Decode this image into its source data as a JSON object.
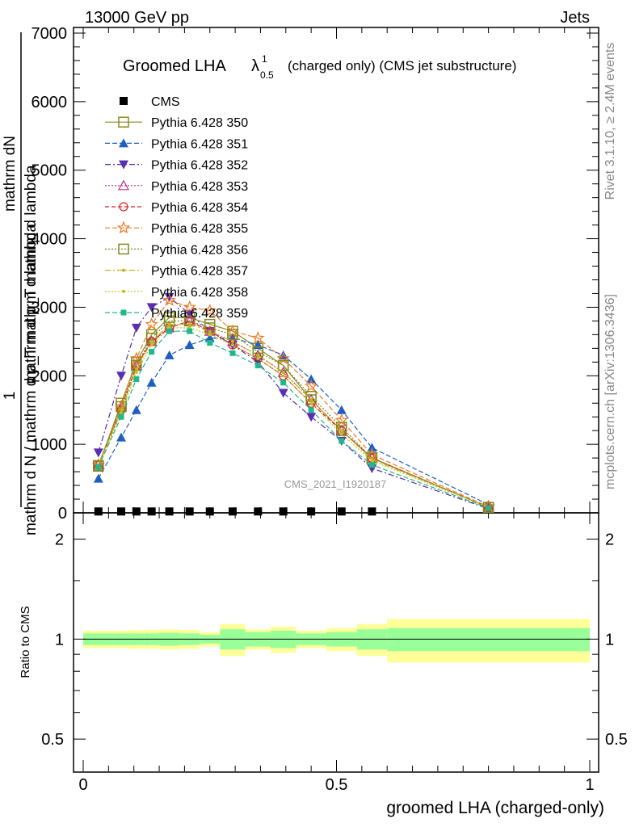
{
  "header": {
    "energy_label": "13000 GeV pp",
    "process_label": "Jets",
    "rivet_label": "Rivet 3.1.10, ≥ 2.4M events",
    "mcplots_label": "mcplots.cern.ch [arXiv:1306.3436]",
    "analysis_label": "CMS_2021_I1920187"
  },
  "chart_data": {
    "type": "line",
    "title": "Groomed LHA",
    "title_symbol": "λ",
    "title_sup": "1",
    "title_sub": "0.5",
    "title_rest": "(charged only) (CMS jet substructure)",
    "ylabel_main": "mathrm d N / mathrm d p_T mathrm d lambda",
    "ylabel_numer": "1",
    "ylabel_denom": "mathrm d N / mathrm d p_T",
    "ylabel_left": "mathrm dN",
    "ylabel_tail": "mathrm d p_T mathrm d lambda",
    "ylabel_ratio": "Ratio to CMS",
    "xlabel": "groomed LHA (charged-only)",
    "xlim": [
      0,
      1
    ],
    "ylim": [
      0,
      7000
    ],
    "ratio_ylim": [
      0.4,
      2.4
    ],
    "x_ticks": [
      "0",
      "0.5",
      "1"
    ],
    "y_ticks": [
      "0",
      "1000",
      "2000",
      "3000",
      "4000",
      "5000",
      "6000",
      "7000"
    ],
    "ratio_ticks": [
      "0.5",
      "1",
      "2"
    ],
    "x": [
      0.03,
      0.075,
      0.105,
      0.135,
      0.17,
      0.21,
      0.25,
      0.295,
      0.345,
      0.395,
      0.45,
      0.51,
      0.57,
      0.8
    ],
    "cms": {
      "name": "CMS",
      "x": [
        0.03,
        0.075,
        0.105,
        0.135,
        0.17,
        0.21,
        0.25,
        0.295,
        0.345,
        0.395,
        0.45,
        0.51,
        0.57
      ],
      "values": [
        20,
        20,
        20,
        20,
        20,
        20,
        20,
        20,
        20,
        20,
        20,
        20,
        20
      ]
    },
    "series": [
      {
        "name": "Pythia 6.428 350",
        "color": "#8c8c1f",
        "marker": "square-open",
        "dash": "",
        "values": [
          680,
          1600,
          2200,
          2600,
          2850,
          2850,
          2750,
          2650,
          2400,
          2150,
          1650,
          1200,
          800,
          80
        ]
      },
      {
        "name": "Pythia 6.428 351",
        "color": "#1f5fbf",
        "marker": "triangle-up",
        "dash": "6,3",
        "values": [
          500,
          1100,
          1500,
          1900,
          2300,
          2450,
          2550,
          2550,
          2450,
          2300,
          1950,
          1500,
          950,
          120
        ]
      },
      {
        "name": "Pythia 6.428 352",
        "color": "#5a2db3",
        "marker": "triangle-down",
        "dash": "7,3,2,3",
        "values": [
          880,
          2000,
          2700,
          3000,
          3150,
          2900,
          2650,
          2450,
          2200,
          1750,
          1400,
          1050,
          650,
          60
        ]
      },
      {
        "name": "Pythia 6.428 353",
        "color": "#b8308a",
        "marker": "triangle-open",
        "dash": "2,2",
        "values": [
          700,
          1550,
          2150,
          2500,
          2700,
          2800,
          2650,
          2500,
          2300,
          2050,
          1650,
          1200,
          800,
          80
        ]
      },
      {
        "name": "Pythia 6.428 354",
        "color": "#d62020",
        "marker": "circle-open",
        "dash": "5,3",
        "values": [
          690,
          1500,
          2150,
          2500,
          2700,
          2800,
          2650,
          2450,
          2250,
          2000,
          1600,
          1200,
          800,
          80
        ]
      },
      {
        "name": "Pythia 6.428 355",
        "color": "#ee7a22",
        "marker": "star-open",
        "dash": "6,3",
        "values": [
          700,
          1550,
          2250,
          2750,
          3100,
          3000,
          2950,
          2650,
          2550,
          2250,
          1850,
          1350,
          850,
          90
        ]
      },
      {
        "name": "Pythia 6.428 356",
        "color": "#7f8c1f",
        "marker": "square-open",
        "dash": "2,2",
        "values": [
          690,
          1550,
          2150,
          2550,
          2800,
          2800,
          2700,
          2600,
          2350,
          2150,
          1700,
          1250,
          800,
          80
        ]
      },
      {
        "name": "Pythia 6.428 357",
        "color": "#c8b420",
        "marker": "dot",
        "dash": "7,3,2,3",
        "values": [
          680,
          1500,
          2100,
          2500,
          2750,
          2750,
          2650,
          2500,
          2300,
          2050,
          1650,
          1200,
          780,
          80
        ]
      },
      {
        "name": "Pythia 6.428 358",
        "color": "#b8c820",
        "marker": "dot",
        "dash": "2,2",
        "values": [
          680,
          1450,
          2050,
          2450,
          2700,
          2700,
          2600,
          2450,
          2250,
          2000,
          1600,
          1150,
          760,
          80
        ]
      },
      {
        "name": "Pythia 6.428 359",
        "color": "#20b88a",
        "marker": "square-small",
        "dash": "6,3",
        "values": [
          670,
          1400,
          1950,
          2350,
          2650,
          2650,
          2480,
          2330,
          2150,
          1900,
          1500,
          1050,
          700,
          70
        ]
      }
    ],
    "ratio_bands": {
      "x_edges": [
        0.0,
        0.06,
        0.09,
        0.12,
        0.15,
        0.19,
        0.23,
        0.27,
        0.32,
        0.37,
        0.42,
        0.48,
        0.54,
        0.6,
        1.0
      ],
      "inner": [
        0.04,
        0.04,
        0.04,
        0.04,
        0.045,
        0.04,
        0.03,
        0.07,
        0.05,
        0.06,
        0.04,
        0.05,
        0.07,
        0.08
      ],
      "outer": [
        0.06,
        0.06,
        0.065,
        0.065,
        0.07,
        0.065,
        0.05,
        0.11,
        0.07,
        0.09,
        0.06,
        0.08,
        0.11,
        0.15
      ]
    }
  }
}
